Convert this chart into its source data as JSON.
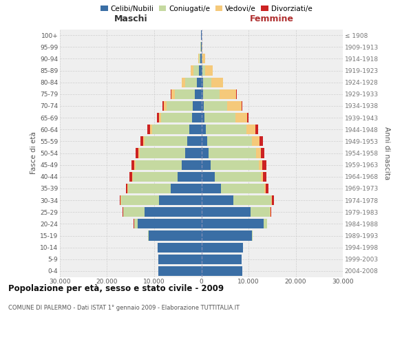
{
  "age_groups": [
    "0-4",
    "5-9",
    "10-14",
    "15-19",
    "20-24",
    "25-29",
    "30-34",
    "35-39",
    "40-44",
    "45-49",
    "50-54",
    "55-59",
    "60-64",
    "65-69",
    "70-74",
    "75-79",
    "80-84",
    "85-89",
    "90-94",
    "95-99",
    "100+"
  ],
  "birth_years": [
    "2004-2008",
    "1999-2003",
    "1994-1998",
    "1989-1993",
    "1984-1988",
    "1979-1983",
    "1974-1978",
    "1969-1973",
    "1964-1968",
    "1959-1963",
    "1954-1958",
    "1949-1953",
    "1944-1948",
    "1939-1943",
    "1934-1938",
    "1929-1933",
    "1924-1928",
    "1919-1923",
    "1914-1918",
    "1909-1913",
    "≤ 1908"
  ],
  "males": {
    "celibi": [
      9100,
      9100,
      9200,
      11200,
      13500,
      12000,
      9000,
      6500,
      5000,
      4200,
      3500,
      3000,
      2500,
      2000,
      1800,
      1400,
      900,
      500,
      150,
      60,
      10
    ],
    "coniugati": [
      0,
      0,
      0,
      100,
      800,
      4500,
      8000,
      9000,
      9500,
      9800,
      9500,
      9000,
      8000,
      6500,
      5500,
      4200,
      2500,
      1200,
      350,
      100,
      15
    ],
    "vedovi": [
      0,
      0,
      0,
      0,
      0,
      50,
      100,
      150,
      200,
      200,
      300,
      300,
      400,
      500,
      600,
      800,
      700,
      500,
      200,
      80,
      15
    ],
    "divorziati": [
      0,
      0,
      0,
      0,
      50,
      150,
      250,
      400,
      500,
      600,
      600,
      600,
      500,
      400,
      300,
      150,
      80,
      40,
      10,
      5,
      2
    ]
  },
  "females": {
    "nubili": [
      8700,
      8600,
      8800,
      10800,
      13200,
      10500,
      6800,
      4200,
      2800,
      2000,
      1600,
      1300,
      1000,
      700,
      500,
      400,
      300,
      150,
      50,
      20,
      5
    ],
    "coniugate": [
      0,
      0,
      0,
      100,
      700,
      4000,
      8000,
      9200,
      9800,
      10200,
      10000,
      9500,
      8500,
      6500,
      5000,
      3500,
      1800,
      700,
      180,
      60,
      10
    ],
    "vedove": [
      0,
      0,
      0,
      0,
      0,
      100,
      200,
      300,
      500,
      700,
      1000,
      1500,
      2000,
      2500,
      3000,
      3500,
      2500,
      1500,
      600,
      200,
      50
    ],
    "divorziate": [
      0,
      0,
      0,
      0,
      50,
      200,
      350,
      550,
      700,
      900,
      800,
      700,
      500,
      300,
      150,
      80,
      40,
      20,
      5,
      3,
      1
    ]
  },
  "colors": {
    "celibi": "#3A6EA5",
    "coniugati": "#C5D9A0",
    "vedovi": "#F5C97A",
    "divorziati": "#CC2222"
  },
  "xlim": 30000,
  "title": "Popolazione per età, sesso e stato civile - 2009",
  "subtitle": "COMUNE DI PALERMO - Dati ISTAT 1° gennaio 2009 - Elaborazione TUTTITALIA.IT",
  "ylabel_left": "Fasce di età",
  "ylabel_right": "Anni di nascita",
  "xlabel_maschi": "Maschi",
  "xlabel_femmine": "Femmine",
  "legend_labels": [
    "Celibi/Nubili",
    "Coniugati/e",
    "Vedovi/e",
    "Divorziati/e"
  ],
  "bg_color": "#efefef",
  "grid_color": "#cccccc"
}
